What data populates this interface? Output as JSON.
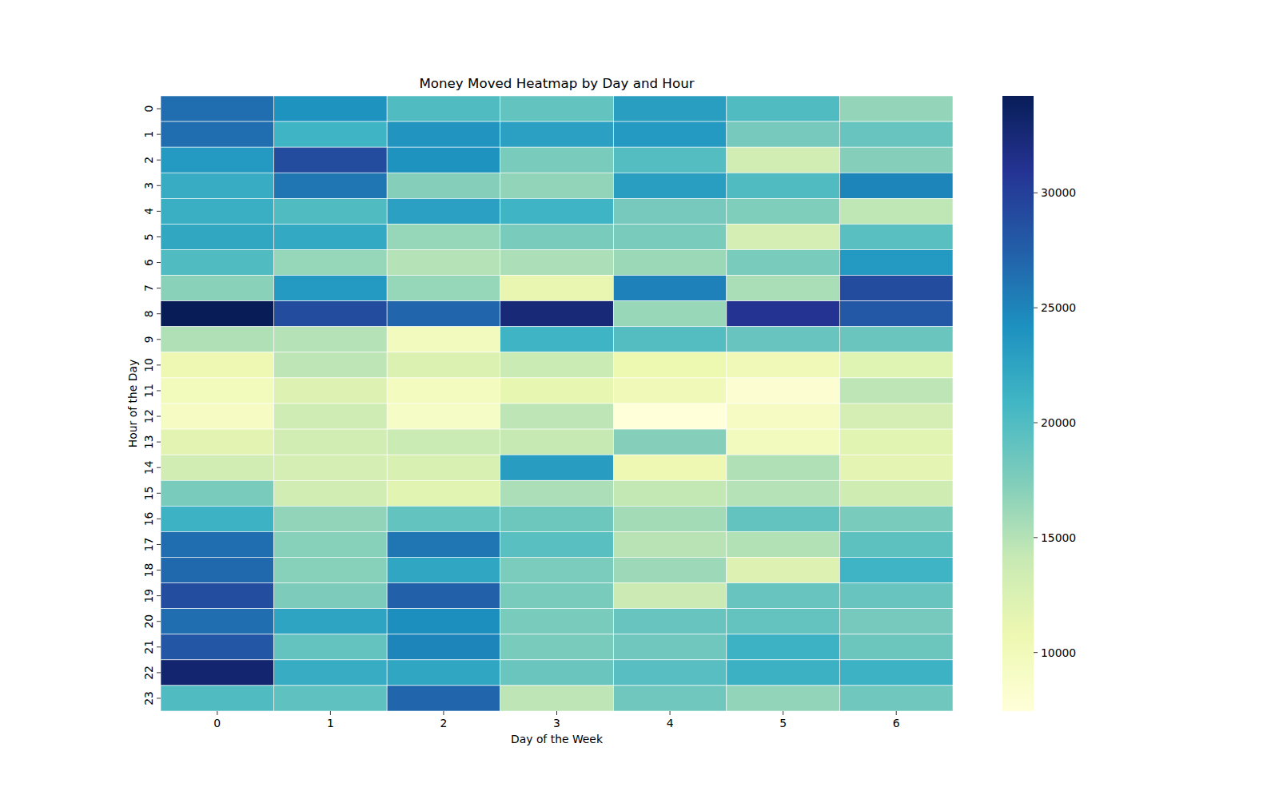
{
  "chart_data": {
    "type": "heatmap",
    "title": "Money Moved Heatmap by Day and Hour",
    "x_label": "Day of the Week",
    "y_label": "Hour of the Day",
    "categories": [
      0,
      1,
      2,
      3,
      4,
      5,
      6
    ],
    "y_categories": [
      0,
      1,
      2,
      3,
      4,
      5,
      6,
      7,
      8,
      9,
      10,
      11,
      12,
      13,
      14,
      15,
      16,
      17,
      18,
      19,
      20,
      21,
      22,
      23
    ],
    "color": "YlGnBu",
    "values": [
      [
        26500,
        24000,
        20000,
        19000,
        23000,
        20000,
        16500
      ],
      [
        26500,
        21000,
        23800,
        22800,
        23500,
        18000,
        18800
      ],
      [
        23500,
        29000,
        24000,
        17800,
        19800,
        13200,
        17200
      ],
      [
        21700,
        26000,
        17200,
        16600,
        23000,
        20000,
        25000
      ],
      [
        21500,
        20000,
        22800,
        21000,
        18000,
        17500,
        14500
      ],
      [
        22200,
        22000,
        16400,
        17800,
        17800,
        13000,
        19500
      ],
      [
        20000,
        16400,
        15000,
        15400,
        16200,
        17800,
        23500
      ],
      [
        17000,
        23500,
        16400,
        11200,
        25200,
        15500,
        29000
      ],
      [
        34220,
        29000,
        27000,
        32500,
        16300,
        31000,
        28000
      ],
      [
        15200,
        15000,
        9700,
        21000,
        19800,
        18800,
        18600
      ],
      [
        10600,
        14600,
        12400,
        13800,
        10800,
        10300,
        12000
      ],
      [
        9900,
        12300,
        9600,
        11300,
        10300,
        8100,
        14600
      ],
      [
        9300,
        13500,
        9100,
        14600,
        7450,
        9200,
        13000
      ],
      [
        11700,
        13300,
        13800,
        14200,
        17200,
        9700,
        11800
      ],
      [
        13300,
        13000,
        12600,
        23200,
        10600,
        15200,
        11600
      ],
      [
        17800,
        13200,
        11800,
        15400,
        14300,
        15000,
        13400
      ],
      [
        21200,
        16600,
        19000,
        18400,
        15800,
        19000,
        17800
      ],
      [
        26500,
        17100,
        26000,
        19500,
        14800,
        15100,
        19300
      ],
      [
        26800,
        17100,
        22300,
        17700,
        16100,
        12300,
        21000
      ],
      [
        28800,
        17600,
        27300,
        17800,
        13700,
        18800,
        18800
      ],
      [
        26500,
        22500,
        24300,
        17800,
        18800,
        18900,
        18000
      ],
      [
        28200,
        18900,
        25000,
        17800,
        18300,
        21200,
        18500
      ],
      [
        33000,
        21700,
        22300,
        18600,
        19600,
        21300,
        21200
      ],
      [
        20000,
        19200,
        27000,
        14600,
        18300,
        16600,
        18300
      ]
    ],
    "colorbar_range": [
      7450,
      34220
    ],
    "colorbar_ticks": [
      10000,
      15000,
      20000,
      25000,
      30000
    ]
  }
}
